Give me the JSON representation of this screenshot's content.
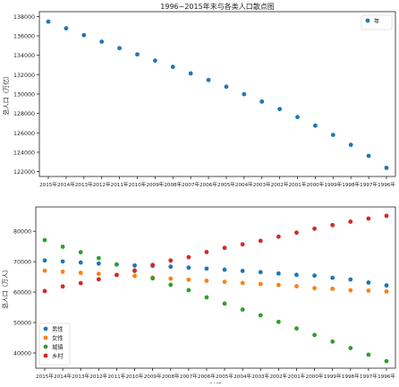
{
  "colors": {
    "total": "#1f77b4",
    "male": "#1f77b4",
    "female": "#ff7f0e",
    "urban": "#2ca02c",
    "rural": "#d62728",
    "axis": "#222222"
  },
  "chart_data": [
    {
      "type": "scatter",
      "title": "1996~2015年末与各类人口散点图",
      "xlabel": "",
      "ylabel": "总人口（万亿）",
      "categories": [
        "2015年",
        "2014年",
        "2013年",
        "2012年",
        "2011年",
        "2010年",
        "2009年",
        "2008年",
        "2007年",
        "2006年",
        "2005年",
        "2004年",
        "2003年",
        "2002年",
        "2001年",
        "2000年",
        "1999年",
        "1998年",
        "1997年",
        "1996年"
      ],
      "ylim": [
        121500,
        138500
      ],
      "yticks": [
        122000,
        124000,
        126000,
        128000,
        130000,
        132000,
        134000,
        136000,
        138000
      ],
      "grid": false,
      "legend": "top-right",
      "series": [
        {
          "name": "年",
          "color_key": "total",
          "values": [
            137462,
            136782,
            136072,
            135404,
            134735,
            134091,
            133450,
            132802,
            132129,
            131448,
            130756,
            129988,
            129227,
            128453,
            127627,
            126743,
            125786,
            124761,
            123626,
            122389
          ]
        }
      ]
    },
    {
      "type": "scatter",
      "title": "",
      "xlabel": "时间",
      "ylabel": "总人口（万人）",
      "categories": [
        "2015年",
        "2014年",
        "2013年",
        "2012年",
        "2011年",
        "2010年",
        "2009年",
        "2008年",
        "2007年",
        "2006年",
        "2005年",
        "2004年",
        "2003年",
        "2002年",
        "2001年",
        "2000年",
        "1999年",
        "1998年",
        "1997年",
        "1996年"
      ],
      "ylim": [
        35000,
        88000
      ],
      "yticks": [
        40000,
        50000,
        60000,
        70000,
        80000
      ],
      "grid": false,
      "legend": "bottom-left",
      "series": [
        {
          "name": "男性",
          "color_key": "male",
          "values": [
            70414,
            70079,
            69728,
            69395,
            69068,
            68748,
            68647,
            68357,
            68048,
            67728,
            67375,
            66976,
            66556,
            66115,
            65672,
            65437,
            64692,
            64157,
            63131,
            62200
          ]
        },
        {
          "name": "女性",
          "color_key": "female",
          "values": [
            67048,
            66703,
            66344,
            66009,
            65667,
            65343,
            64803,
            64445,
            64081,
            63720,
            63381,
            63012,
            62671,
            62338,
            61955,
            61306,
            61094,
            60604,
            60495,
            60189
          ]
        },
        {
          "name": "城镇",
          "color_key": "urban",
          "values": [
            77116,
            74916,
            73111,
            71182,
            69079,
            66978,
            64512,
            62403,
            60633,
            58288,
            56212,
            54283,
            52376,
            50212,
            48064,
            45906,
            43748,
            41608,
            39449,
            37304
          ]
        },
        {
          "name": "乡村",
          "color_key": "rural",
          "values": [
            60346,
            61866,
            62961,
            64222,
            65656,
            67113,
            68938,
            70399,
            71496,
            73160,
            74544,
            75705,
            76851,
            78241,
            79563,
            80837,
            82038,
            83153,
            84177,
            85085
          ]
        }
      ]
    }
  ]
}
